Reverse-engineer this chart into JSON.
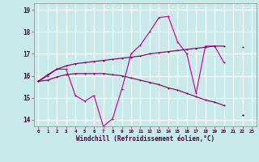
{
  "xlabel": "Windchill (Refroidissement éolien,°C)",
  "x": [
    0,
    1,
    2,
    3,
    4,
    5,
    6,
    7,
    8,
    9,
    10,
    11,
    12,
    13,
    14,
    15,
    16,
    17,
    18,
    19,
    20,
    21,
    22,
    23
  ],
  "line1_y": [
    15.75,
    16.0,
    16.3,
    16.3,
    15.1,
    14.85,
    15.1,
    13.7,
    14.05,
    15.4,
    17.0,
    17.4,
    18.0,
    18.65,
    18.7,
    17.55,
    17.0,
    15.2,
    17.35,
    17.35,
    16.6,
    null,
    14.2,
    null
  ],
  "line2_y": [
    15.75,
    16.05,
    16.3,
    16.45,
    16.55,
    16.6,
    16.65,
    16.7,
    16.75,
    16.8,
    16.85,
    16.9,
    17.0,
    17.05,
    17.1,
    17.15,
    17.2,
    17.25,
    17.3,
    17.35,
    17.35,
    null,
    17.3,
    null
  ],
  "line3_y": [
    15.75,
    15.8,
    15.95,
    16.05,
    16.1,
    16.1,
    16.1,
    16.1,
    16.05,
    16.0,
    15.9,
    15.8,
    15.7,
    15.6,
    15.45,
    15.35,
    15.2,
    15.05,
    14.9,
    14.8,
    14.65,
    null,
    14.2,
    null
  ],
  "bg_color": "#c8eaea",
  "grid_color": "#ffffff",
  "line1_color": "#cc00aa",
  "line2_color": "#880066",
  "line3_color": "#880066",
  "ylim": [
    13.7,
    19.3
  ],
  "yticks": [
    14,
    15,
    16,
    17,
    18,
    19
  ],
  "xlim": [
    -0.5,
    23.5
  ]
}
